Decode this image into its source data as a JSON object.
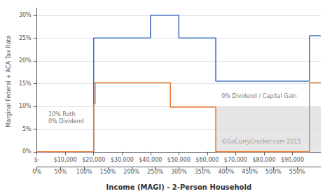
{
  "chart_data": {
    "type": "line",
    "xlabel": "Income (MAGI) - 2-Person Household",
    "ylabel": "Marginal Federal + ACA Tax Rate",
    "series": [
      {
        "color": "#4472c4",
        "x": [
          0,
          20000,
          20000,
          40000,
          40000,
          50000,
          50000,
          63000,
          63000,
          96000,
          96000,
          100000
        ],
        "values": [
          0,
          0,
          0.25,
          0.25,
          0.3,
          0.3,
          0.25,
          0.25,
          0.155,
          0.155,
          0.255,
          0.255
        ]
      },
      {
        "color": "#ed7d31",
        "x": [
          0,
          20000,
          20000,
          20500,
          20500,
          47000,
          47000,
          63000,
          63000,
          96000,
          96000,
          100000
        ],
        "values": [
          0,
          0,
          0.105,
          0.105,
          0.152,
          0.152,
          0.098,
          0.098,
          0.0,
          0.0,
          0.152,
          0.152
        ]
      }
    ],
    "shade": {
      "x": [
        63000,
        100000
      ],
      "y": [
        0.0,
        0.098
      ],
      "color": "#dcdcdc"
    },
    "xlim": [
      0,
      100000
    ],
    "xticks": [
      {
        "value": 0,
        "label": "$-"
      },
      {
        "value": 10000,
        "label": "$10,000"
      },
      {
        "value": 20000,
        "label": "$20,000"
      },
      {
        "value": 30000,
        "label": "$30,000"
      },
      {
        "value": 40000,
        "label": "$40,000"
      },
      {
        "value": 50000,
        "label": "$50,000"
      },
      {
        "value": 60000,
        "label": "$60,000"
      },
      {
        "value": 70000,
        "label": "$70,000"
      },
      {
        "value": 80000,
        "label": "$80,000"
      },
      {
        "value": 90000,
        "label": "$90,000"
      }
    ],
    "x2lim": [
      0,
      5.9998800024
    ],
    "x2ticks": [
      {
        "value": 0,
        "label": "0%"
      },
      {
        "value": 0.5,
        "label": "50%"
      },
      {
        "value": 1.0,
        "label": "100%"
      },
      {
        "value": 1.5,
        "label": "150%"
      },
      {
        "value": 2.0,
        "label": "200%"
      },
      {
        "value": 2.5,
        "label": "250%"
      },
      {
        "value": 3.0,
        "label": "300%"
      },
      {
        "value": 3.5,
        "label": "350%"
      },
      {
        "value": 4.0,
        "label": "400%"
      },
      {
        "value": 4.5,
        "label": "450%"
      },
      {
        "value": 5.0,
        "label": "500%"
      },
      {
        "value": 5.5,
        "label": "550%"
      }
    ],
    "ylim": [
      -0.005,
      0.315
    ],
    "yticks": [
      {
        "value": 0,
        "label": "0%"
      },
      {
        "value": 0.05,
        "label": "5%"
      },
      {
        "value": 0.1,
        "label": "10%"
      },
      {
        "value": 0.15,
        "label": "15%"
      },
      {
        "value": 0.2,
        "label": "20%"
      },
      {
        "value": 0.25,
        "label": "25%"
      },
      {
        "value": 0.3,
        "label": "30%"
      }
    ],
    "grid": "y",
    "annotations": [
      {
        "text": "10% Roth\n0% Dividend",
        "x": 4000,
        "y": 0.075
      },
      {
        "text": "0% Dividend / Capital Gain",
        "x": 65000,
        "y": 0.115
      },
      {
        "text": "©GoCurryCracker.com 2015",
        "x": 65000,
        "y": 0.015
      }
    ]
  }
}
